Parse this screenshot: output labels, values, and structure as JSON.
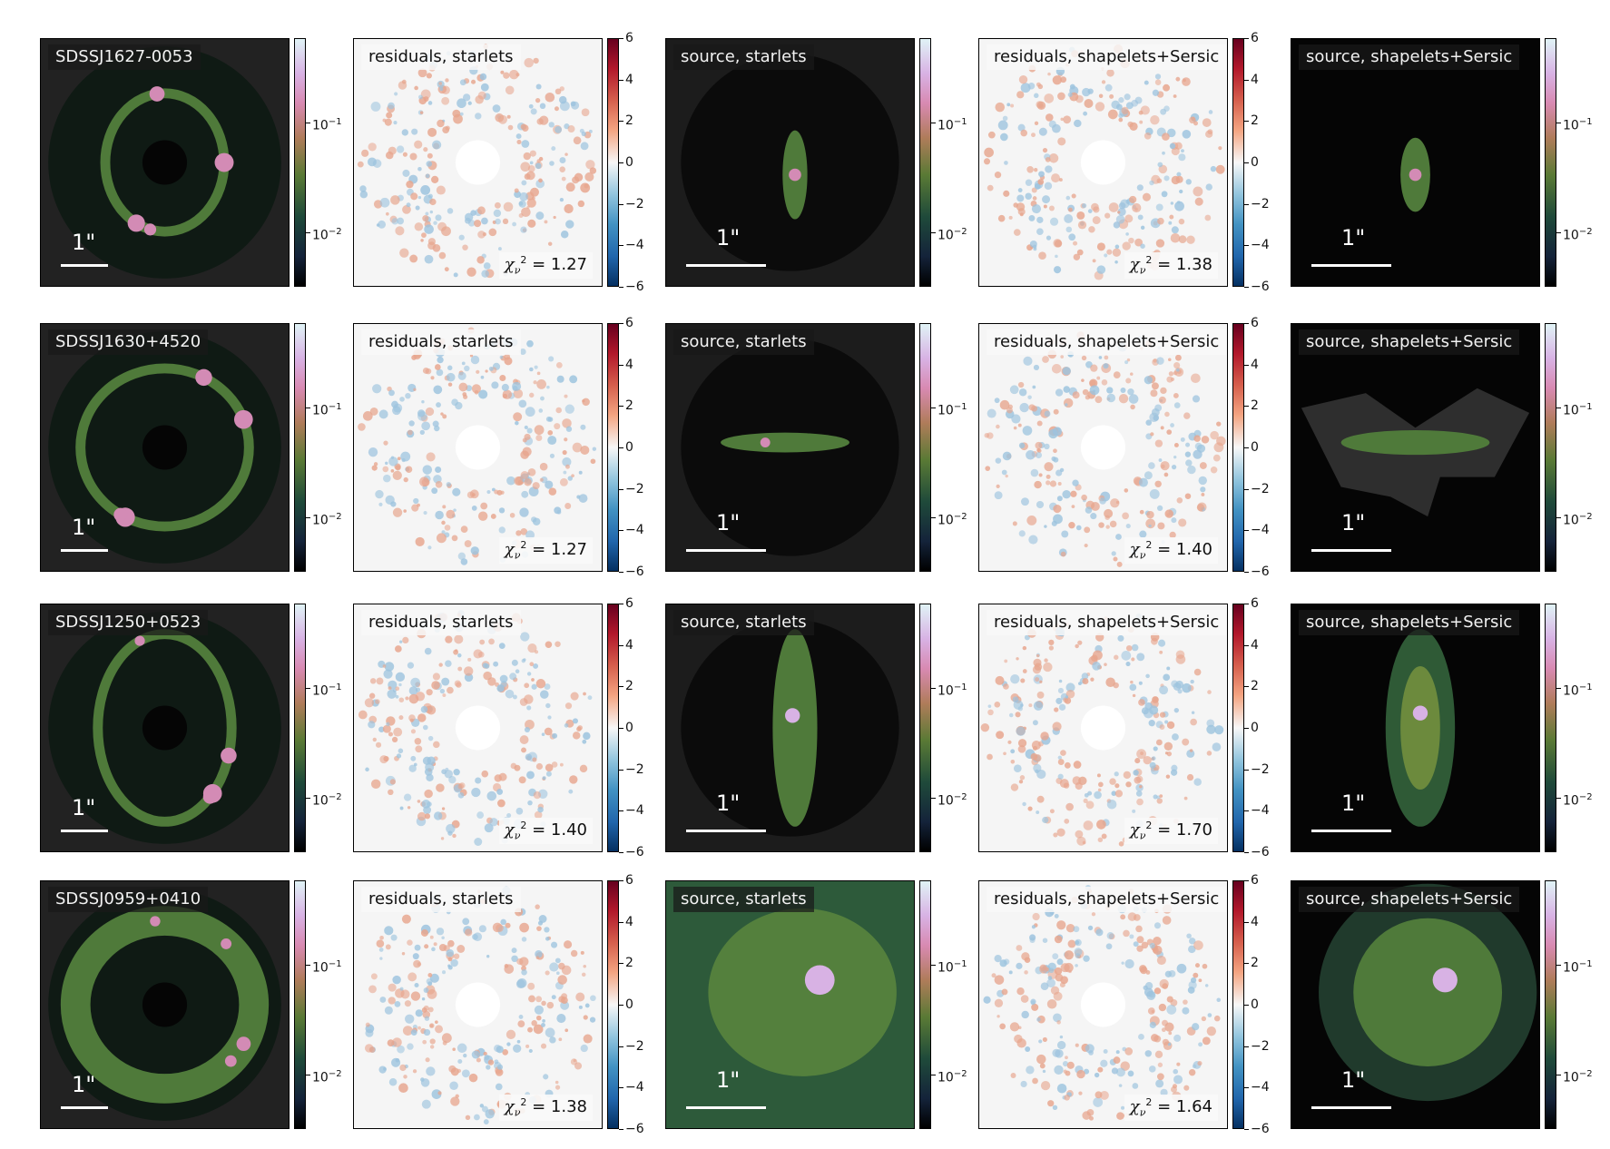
{
  "rows": [
    {
      "lens_name": "SDSSJ1627-0053",
      "residual_starlets_label": "residuals, starlets",
      "source_starlets_label": "source, starlets",
      "residual_shapelets_label": "residuals, shapelets+Sersic",
      "source_shapelets_label": "source, shapelets+Sersic",
      "chi2_starlets": "1.27",
      "chi2_shapelets": "1.38",
      "scale_label": "1\""
    },
    {
      "lens_name": "SDSSJ1630+4520",
      "residual_starlets_label": "residuals, starlets",
      "source_starlets_label": "source, starlets",
      "residual_shapelets_label": "residuals, shapelets+Sersic",
      "source_shapelets_label": "source, shapelets+Sersic",
      "chi2_starlets": "1.27",
      "chi2_shapelets": "1.40",
      "scale_label": "1\""
    },
    {
      "lens_name": "SDSSJ1250+0523",
      "residual_starlets_label": "residuals, starlets",
      "source_starlets_label": "source, starlets",
      "residual_shapelets_label": "residuals, shapelets+Sersic",
      "source_shapelets_label": "source, shapelets+Sersic",
      "chi2_starlets": "1.40",
      "chi2_shapelets": "1.70",
      "scale_label": "1\""
    },
    {
      "lens_name": "SDSSJ0959+0410",
      "residual_starlets_label": "residuals, starlets",
      "source_starlets_label": "source, starlets",
      "residual_shapelets_label": "residuals, shapelets+Sersic",
      "source_shapelets_label": "source, shapelets+Sersic",
      "chi2_starlets": "1.38",
      "chi2_shapelets": "1.64",
      "scale_label": "1\""
    }
  ],
  "chi2_prefix": "χ",
  "chi2_sub": "ν",
  "chi2_sup": "2",
  "chi2_eq": " = ",
  "colorbar_log_ticks": [
    "10",
    "10"
  ],
  "colorbar_log_exponents": [
    "−1",
    "−2"
  ],
  "colorbar_residual_ticks": [
    "6",
    "4",
    "2",
    "0",
    "−2",
    "−4",
    "−6"
  ],
  "colors": {
    "dark_bg": "#0d0d0d",
    "residual_bg": "#f5f5f5",
    "ring_green": "#4f7a3a",
    "ring_pink": "#d38bb5"
  }
}
